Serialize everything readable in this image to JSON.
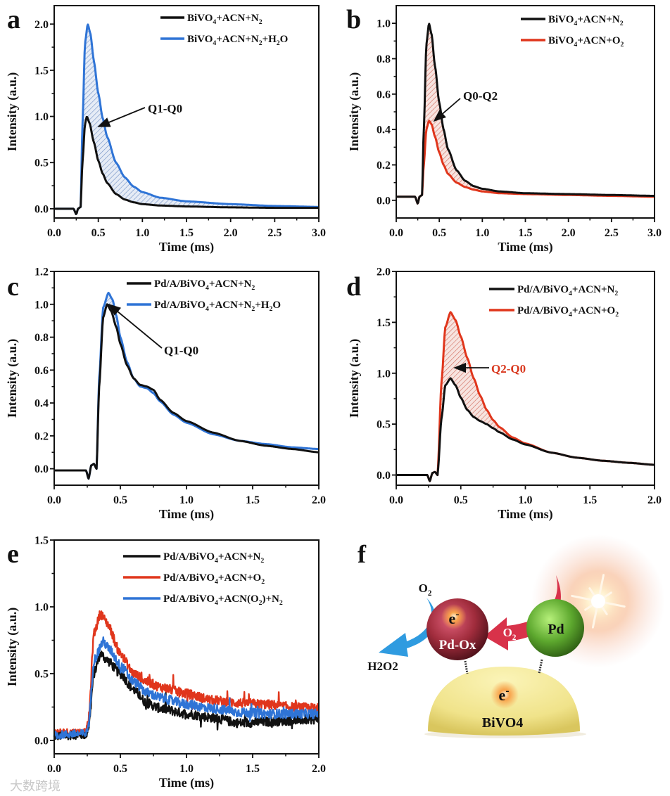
{
  "figure": {
    "watermark": "大数跨境",
    "colors": {
      "black": "#111111",
      "blue": "#2f74d6",
      "red": "#e0361c",
      "red_label": "#d9381e"
    }
  },
  "chart_data": [
    {
      "id": "a",
      "panel_label": "a",
      "type": "line",
      "xlabel": "Time (ms)",
      "ylabel": "Intensity (a.u.)",
      "xlim": [
        0,
        3.0
      ],
      "ylim": [
        -0.1,
        2.2
      ],
      "xticks": [
        "0.0",
        "0.5",
        "1.0",
        "1.5",
        "2.0",
        "2.5",
        "3.0"
      ],
      "xtick_values": [
        0,
        0.5,
        1,
        1.5,
        2,
        2.5,
        3
      ],
      "yticks": [
        "0.0",
        "0.5",
        "1.0",
        "1.5",
        "2.0"
      ],
      "ytick_values": [
        0,
        0.5,
        1,
        1.5,
        2
      ],
      "legend_position": "top-right",
      "series": [
        {
          "name": "BiVO4+ACN+N2",
          "color": "#111111",
          "x": [
            0,
            0.22,
            0.25,
            0.27,
            0.3,
            0.32,
            0.35,
            0.37,
            0.4,
            0.45,
            0.5,
            0.55,
            0.6,
            0.7,
            0.8,
            0.9,
            1.0,
            1.2,
            1.5,
            2.0,
            2.5,
            3.0
          ],
          "y": [
            0,
            0,
            -0.06,
            0,
            0.02,
            0.5,
            0.92,
            1.0,
            0.93,
            0.72,
            0.52,
            0.38,
            0.28,
            0.16,
            0.1,
            0.07,
            0.05,
            0.035,
            0.025,
            0.015,
            0.01,
            0.01
          ]
        },
        {
          "name": "BiVO4+ACN+N2+H2O",
          "color": "#2f74d6",
          "x": [
            0,
            0.22,
            0.25,
            0.27,
            0.3,
            0.32,
            0.35,
            0.38,
            0.41,
            0.45,
            0.5,
            0.55,
            0.6,
            0.7,
            0.8,
            0.9,
            1.0,
            1.2,
            1.5,
            2.0,
            2.5,
            3.0
          ],
          "y": [
            0,
            0,
            -0.06,
            0,
            0.02,
            0.9,
            1.8,
            2.0,
            1.9,
            1.6,
            1.25,
            0.98,
            0.78,
            0.5,
            0.34,
            0.24,
            0.18,
            0.12,
            0.08,
            0.05,
            0.03,
            0.02
          ]
        }
      ],
      "shade_between": [
        1,
        0
      ],
      "shade_color": "#2f74d6",
      "annotation": {
        "text": "Q1-Q0"
      }
    },
    {
      "id": "b",
      "panel_label": "b",
      "type": "line",
      "xlabel": "Time (ms)",
      "ylabel": "Intensity (a.u.)",
      "xlim": [
        0,
        3.0
      ],
      "ylim": [
        -0.1,
        1.1
      ],
      "xticks": [
        "0.0",
        "0.5",
        "1.0",
        "1.5",
        "2.0",
        "2.5",
        "3.0"
      ],
      "xtick_values": [
        0,
        0.5,
        1,
        1.5,
        2,
        2.5,
        3
      ],
      "yticks": [
        "0.0",
        "0.2",
        "0.4",
        "0.6",
        "0.8",
        "1.0"
      ],
      "ytick_values": [
        0,
        0.2,
        0.4,
        0.6,
        0.8,
        1.0
      ],
      "legend_position": "top-right",
      "series": [
        {
          "name": "BiVO4+ACN+N2",
          "color": "#111111",
          "x": [
            0,
            0.22,
            0.25,
            0.27,
            0.3,
            0.32,
            0.35,
            0.38,
            0.41,
            0.45,
            0.5,
            0.55,
            0.6,
            0.7,
            0.8,
            0.9,
            1.0,
            1.2,
            1.5,
            2.0,
            2.5,
            3.0
          ],
          "y": [
            0.02,
            0.02,
            -0.02,
            0.02,
            0.03,
            0.4,
            0.88,
            1.0,
            0.94,
            0.76,
            0.55,
            0.4,
            0.29,
            0.17,
            0.11,
            0.08,
            0.065,
            0.05,
            0.04,
            0.035,
            0.03,
            0.025
          ]
        },
        {
          "name": "BiVO4+ACN+O2",
          "color": "#e0361c",
          "x": [
            0,
            0.22,
            0.25,
            0.27,
            0.3,
            0.32,
            0.35,
            0.38,
            0.41,
            0.45,
            0.5,
            0.55,
            0.6,
            0.7,
            0.8,
            0.9,
            1.0,
            1.2,
            1.5,
            2.0,
            2.5,
            3.0
          ],
          "y": [
            0.02,
            0.02,
            -0.02,
            0.02,
            0.03,
            0.2,
            0.4,
            0.45,
            0.43,
            0.36,
            0.27,
            0.2,
            0.15,
            0.1,
            0.075,
            0.06,
            0.05,
            0.04,
            0.035,
            0.03,
            0.025,
            0.02
          ]
        }
      ],
      "shade_between": [
        0,
        1
      ],
      "shade_color": "#e0361c",
      "annotation": {
        "text": "Q0-Q2"
      }
    },
    {
      "id": "c",
      "panel_label": "c",
      "type": "line",
      "xlabel": "Time (ms)",
      "ylabel": "Intensity (a.u.)",
      "xlim": [
        0,
        2.0
      ],
      "ylim": [
        -0.1,
        1.2
      ],
      "xticks": [
        "0.0",
        "0.5",
        "1.0",
        "1.5",
        "2.0"
      ],
      "xtick_values": [
        0,
        0.5,
        1,
        1.5,
        2
      ],
      "yticks": [
        "0.0",
        "0.2",
        "0.4",
        "0.6",
        "0.8",
        "1.0",
        "1.2"
      ],
      "ytick_values": [
        0,
        0.2,
        0.4,
        0.6,
        0.8,
        1.0,
        1.2
      ],
      "legend_position": "top-right",
      "series": [
        {
          "name": "Pd/A/BiVO4+ACN+N2",
          "color": "#111111",
          "x": [
            0,
            0.24,
            0.26,
            0.28,
            0.3,
            0.32,
            0.34,
            0.37,
            0.4,
            0.43,
            0.47,
            0.5,
            0.55,
            0.6,
            0.65,
            0.7,
            0.75,
            0.8,
            0.9,
            1.0,
            1.2,
            1.4,
            1.6,
            1.8,
            2.0
          ],
          "y": [
            -0.01,
            -0.01,
            -0.06,
            0.02,
            0.03,
            0.0,
            0.5,
            0.92,
            1.0,
            0.96,
            0.86,
            0.76,
            0.63,
            0.55,
            0.51,
            0.5,
            0.48,
            0.42,
            0.34,
            0.29,
            0.22,
            0.17,
            0.14,
            0.12,
            0.1
          ]
        },
        {
          "name": "Pd/A/BiVO4+ACN+N2+H2O",
          "color": "#2f74d6",
          "x": [
            0,
            0.24,
            0.26,
            0.28,
            0.3,
            0.32,
            0.34,
            0.37,
            0.41,
            0.44,
            0.47,
            0.5,
            0.55,
            0.6,
            0.65,
            0.7,
            0.75,
            0.8,
            0.9,
            1.0,
            1.2,
            1.4,
            1.6,
            1.8,
            2.0
          ],
          "y": [
            -0.01,
            -0.01,
            -0.06,
            0.02,
            0.03,
            0.0,
            0.55,
            0.98,
            1.07,
            1.03,
            0.93,
            0.8,
            0.65,
            0.55,
            0.5,
            0.49,
            0.46,
            0.41,
            0.33,
            0.28,
            0.21,
            0.17,
            0.15,
            0.13,
            0.12
          ]
        }
      ],
      "shade_between": [
        1,
        0
      ],
      "shade_color": "#2f74d6",
      "annotation": {
        "text": "Q1-Q0"
      }
    },
    {
      "id": "d",
      "panel_label": "d",
      "type": "line",
      "xlabel": "Time (ms)",
      "ylabel": "Intensity (a.u.)",
      "xlim": [
        0,
        2.0
      ],
      "ylim": [
        -0.1,
        2.0
      ],
      "xticks": [
        "0.0",
        "0.5",
        "1.0",
        "1.5",
        "2.0"
      ],
      "xtick_values": [
        0,
        0.5,
        1,
        1.5,
        2
      ],
      "yticks": [
        "0.0",
        "0.5",
        "1.0",
        "1.5",
        "2.0"
      ],
      "ytick_values": [
        0,
        0.5,
        1,
        1.5,
        2
      ],
      "legend_position": "top-right",
      "series": [
        {
          "name": "Pd/A/BiVO4+ACN+N2",
          "color": "#111111",
          "x": [
            0,
            0.24,
            0.26,
            0.28,
            0.3,
            0.32,
            0.35,
            0.38,
            0.42,
            0.46,
            0.5,
            0.55,
            0.6,
            0.65,
            0.7,
            0.75,
            0.8,
            0.9,
            1.0,
            1.2,
            1.4,
            1.6,
            1.8,
            2.0
          ],
          "y": [
            0,
            0,
            -0.06,
            0.02,
            0.03,
            0.0,
            0.55,
            0.88,
            0.95,
            0.88,
            0.76,
            0.64,
            0.57,
            0.53,
            0.5,
            0.46,
            0.42,
            0.35,
            0.3,
            0.22,
            0.17,
            0.14,
            0.12,
            0.1
          ]
        },
        {
          "name": "Pd/A/BiVO4+ACN+O2",
          "color": "#e0361c",
          "x": [
            0,
            0.24,
            0.26,
            0.28,
            0.3,
            0.32,
            0.35,
            0.38,
            0.42,
            0.46,
            0.5,
            0.55,
            0.6,
            0.65,
            0.7,
            0.75,
            0.8,
            0.9,
            1.0,
            1.2,
            1.4,
            1.6,
            1.8,
            2.0
          ],
          "y": [
            0,
            0,
            -0.06,
            0.02,
            0.03,
            0.0,
            0.9,
            1.45,
            1.6,
            1.52,
            1.36,
            1.15,
            0.95,
            0.78,
            0.64,
            0.54,
            0.47,
            0.37,
            0.31,
            0.22,
            0.17,
            0.14,
            0.12,
            0.1
          ]
        }
      ],
      "shade_between": [
        1,
        0
      ],
      "shade_color": "#e0361c",
      "annotation": {
        "text": "Q2-Q0",
        "color": "#d9381e"
      }
    },
    {
      "id": "e",
      "panel_label": "e",
      "type": "line",
      "xlabel": "Time (ms)",
      "ylabel": "Intensity (a.u.)",
      "xlim": [
        0,
        2.0
      ],
      "ylim": [
        -0.1,
        1.5
      ],
      "xticks": [
        "0.0",
        "0.5",
        "1.0",
        "1.5",
        "2.0"
      ],
      "xtick_values": [
        0,
        0.5,
        1,
        1.5,
        2
      ],
      "yticks": [
        "0.0",
        "0.5",
        "1.0",
        "1.5"
      ],
      "ytick_values": [
        0,
        0.5,
        1,
        1.5
      ],
      "legend_position": "top-right",
      "noisy": true,
      "series": [
        {
          "name": "Pd/A/BiVO4+ACN+N2",
          "color": "#111111",
          "x": [
            0,
            0.17,
            0.24,
            0.26,
            0.3,
            0.35,
            0.4,
            0.5,
            0.6,
            0.7,
            0.8,
            1.0,
            1.2,
            1.4,
            1.6,
            1.8,
            2.0
          ],
          "y": [
            0.03,
            0.04,
            0.04,
            0.1,
            0.5,
            0.65,
            0.6,
            0.5,
            0.38,
            0.28,
            0.24,
            0.2,
            0.17,
            0.13,
            0.14,
            0.15,
            0.16
          ]
        },
        {
          "name": "Pd/A/BiVO4+ACN+O2",
          "color": "#e0361c",
          "x": [
            0,
            0.17,
            0.24,
            0.26,
            0.3,
            0.35,
            0.4,
            0.5,
            0.6,
            0.7,
            0.8,
            1.0,
            1.2,
            1.4,
            1.6,
            1.8,
            2.0
          ],
          "y": [
            0.06,
            0.06,
            0.06,
            0.15,
            0.8,
            0.95,
            0.88,
            0.65,
            0.5,
            0.44,
            0.4,
            0.35,
            0.3,
            0.28,
            0.27,
            0.25,
            0.24
          ]
        },
        {
          "name": "Pd/A/BiVO4+ACN(O2)+N2",
          "color": "#2f74d6",
          "x": [
            0,
            0.17,
            0.24,
            0.26,
            0.3,
            0.37,
            0.42,
            0.5,
            0.6,
            0.7,
            0.8,
            1.0,
            1.2,
            1.4,
            1.6,
            1.8,
            2.0
          ],
          "y": [
            0.04,
            0.05,
            0.05,
            0.12,
            0.6,
            0.74,
            0.68,
            0.56,
            0.44,
            0.36,
            0.32,
            0.27,
            0.24,
            0.21,
            0.2,
            0.2,
            0.2
          ]
        }
      ]
    }
  ],
  "schematic": {
    "panel_label": "f",
    "o2_top": "O2",
    "h2o2": "H2O2",
    "pdox_electron": "e-",
    "pdox_label": "Pd-Ox",
    "o2_arrow": "O2",
    "pd_label": "Pd",
    "bivo4_electron": "e-",
    "bivo4_label": "BiVO4"
  }
}
